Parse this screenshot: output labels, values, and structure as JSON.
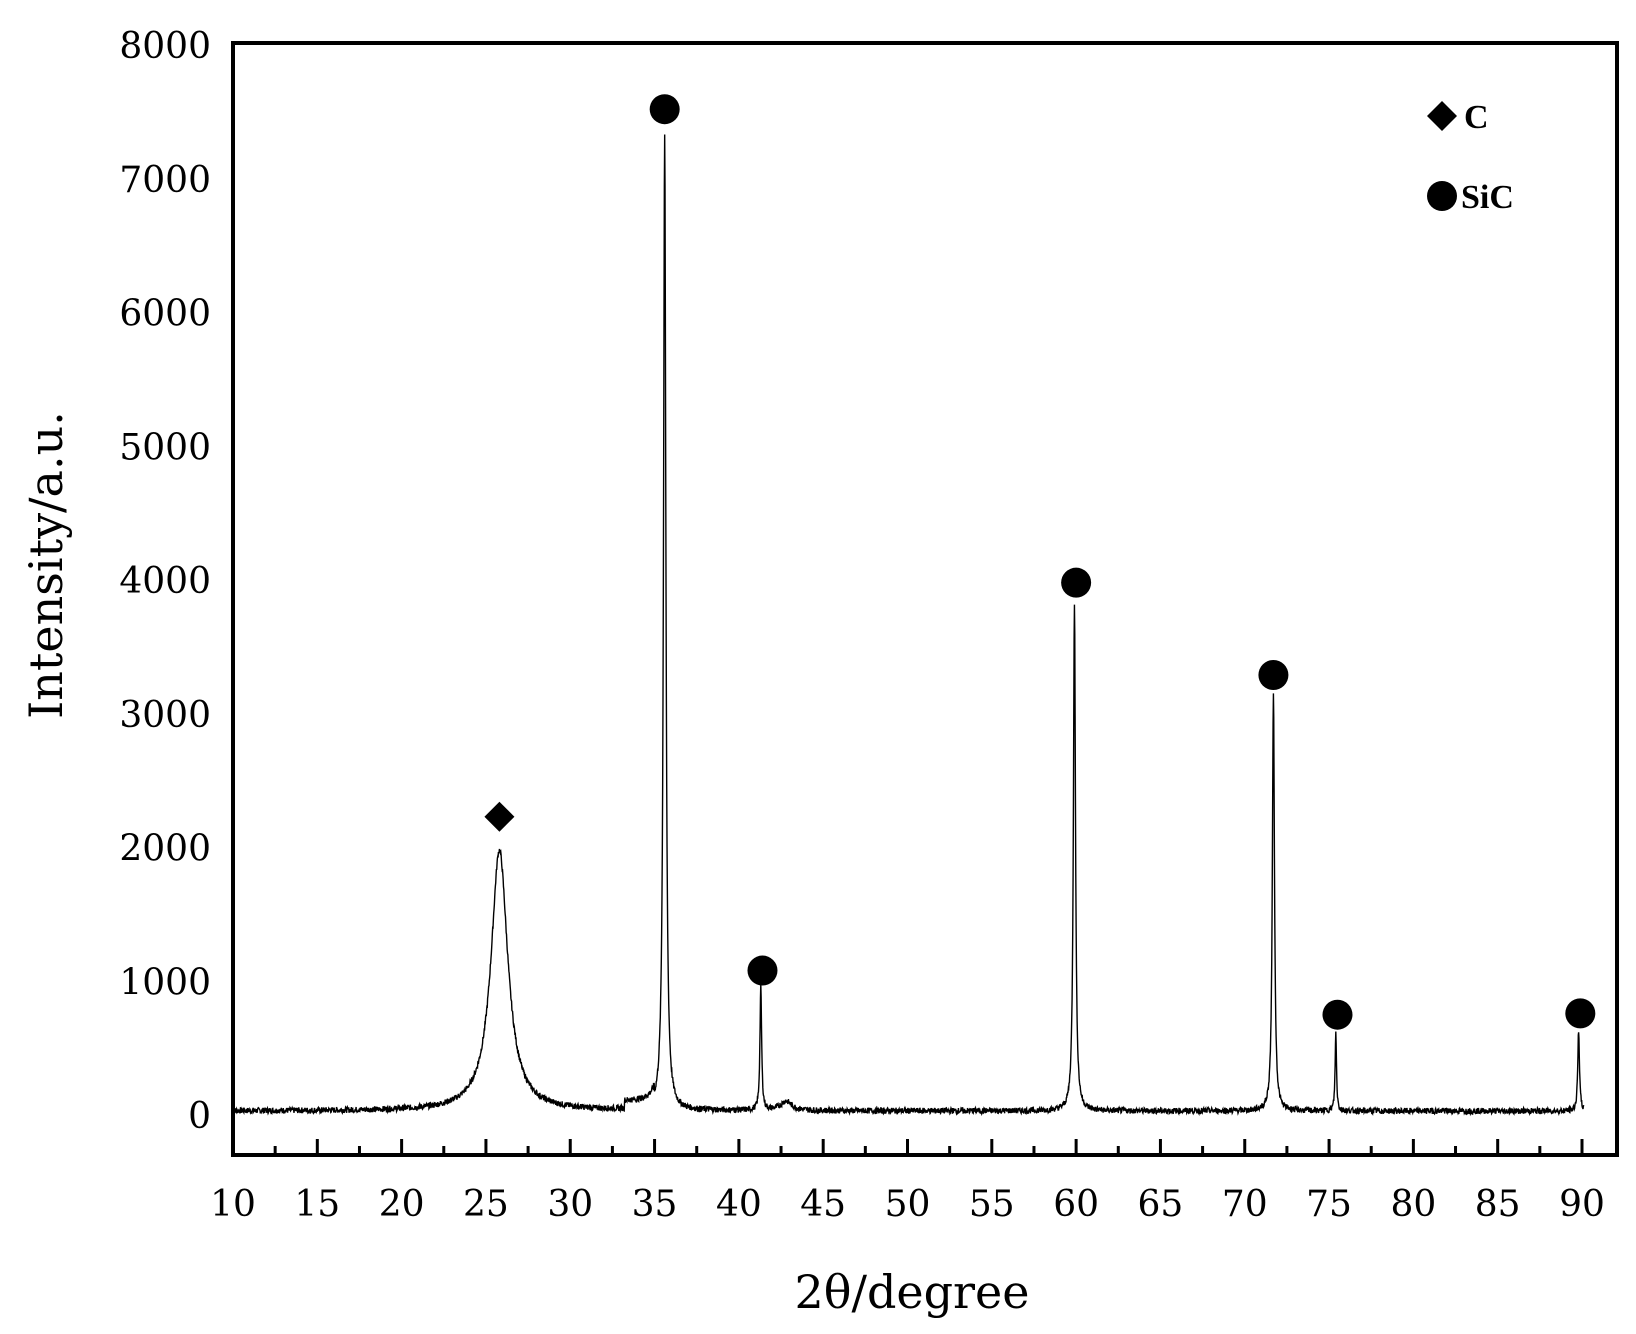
{
  "chart_data": {
    "type": "line",
    "xlabel": "2θ/degree",
    "ylabel": "Intensity/a.u.",
    "xlim": [
      10,
      93
    ],
    "ylim": [
      -300,
      8000
    ],
    "x_ticks": [
      10,
      15,
      20,
      25,
      30,
      35,
      40,
      45,
      50,
      55,
      60,
      65,
      70,
      75,
      80,
      85,
      90
    ],
    "y_ticks": [
      0,
      1000,
      2000,
      3000,
      4000,
      5000,
      6000,
      7000,
      8000
    ],
    "x_tick_labels": [
      "10",
      "15",
      "20",
      "25",
      "30",
      "35",
      "40",
      "45",
      "50",
      "55",
      "60",
      "65",
      "70",
      "75",
      "80",
      "85",
      "90"
    ],
    "y_tick_labels": [
      "0",
      "1000",
      "2000",
      "3000",
      "4000",
      "5000",
      "6000",
      "7000",
      "8000"
    ],
    "grid": false,
    "legend_position": "top-right",
    "baseline": 30,
    "series": [
      {
        "color": "#000000",
        "peaks": [
          {
            "x": 25.8,
            "y": 1950,
            "width": 1.2
          },
          {
            "x": 35.6,
            "y": 7300,
            "width": 0.17
          },
          {
            "x": 41.3,
            "y": 920,
            "width": 0.12
          },
          {
            "x": 42.8,
            "y": 70,
            "width": 0.8
          },
          {
            "x": 59.9,
            "y": 3800,
            "width": 0.15
          },
          {
            "x": 71.7,
            "y": 3130,
            "width": 0.15
          },
          {
            "x": 75.4,
            "y": 580,
            "width": 0.1
          },
          {
            "x": 89.8,
            "y": 610,
            "width": 0.12
          }
        ]
      }
    ],
    "phase_markers": [
      {
        "phase": "C",
        "shape": "diamond",
        "x": 25.8,
        "y": 2230
      },
      {
        "phase": "SiC",
        "shape": "circle",
        "x": 35.6,
        "y": 7520
      },
      {
        "phase": "SiC",
        "shape": "circle",
        "x": 41.4,
        "y": 1080
      },
      {
        "phase": "SiC",
        "shape": "circle",
        "x": 60.0,
        "y": 3980
      },
      {
        "phase": "SiC",
        "shape": "circle",
        "x": 71.7,
        "y": 3290
      },
      {
        "phase": "SiC",
        "shape": "circle",
        "x": 75.5,
        "y": 750
      },
      {
        "phase": "SiC",
        "shape": "circle",
        "x": 89.9,
        "y": 760
      }
    ],
    "legend": [
      {
        "label": "C",
        "shape": "diamond"
      },
      {
        "label": "SiC",
        "shape": "circle"
      }
    ]
  }
}
